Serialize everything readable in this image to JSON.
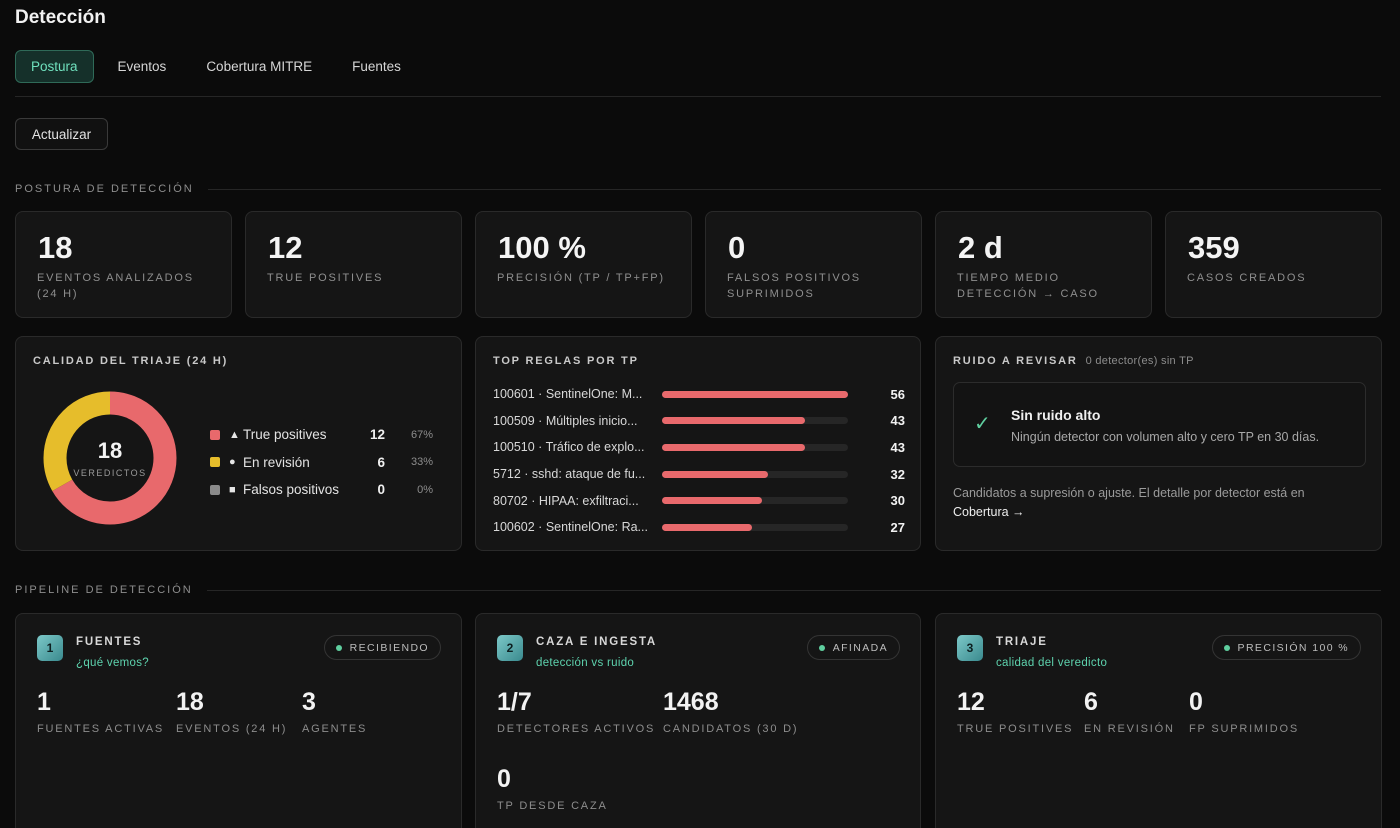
{
  "page": {
    "title": "Detección"
  },
  "tabs": [
    {
      "label": "Postura",
      "active": true
    },
    {
      "label": "Eventos",
      "active": false
    },
    {
      "label": "Cobertura MITRE",
      "active": false
    },
    {
      "label": "Fuentes",
      "active": false
    }
  ],
  "toolbar": {
    "refresh_label": "Actualizar"
  },
  "posture": {
    "section_title": "POSTURA DE DETECCIÓN",
    "kpis": [
      {
        "value": "18",
        "label": "EVENTOS ANALIZADOS (24 H)"
      },
      {
        "value": "12",
        "label": "TRUE POSITIVES"
      },
      {
        "value": "100 %",
        "label": "PRECISIÓN (TP / TP+FP)"
      },
      {
        "value": "0",
        "label": "FALSOS POSITIVOS SUPRIMIDOS"
      },
      {
        "value": "2 d",
        "label": "TIEMPO MEDIO DETECCIÓN → CASO"
      },
      {
        "value": "359",
        "label": "CASOS CREADOS"
      }
    ]
  },
  "triage": {
    "title": "CALIDAD DEL TRIAJE (24 H)",
    "total": "18",
    "total_caption": "VEREDICTOS",
    "items": [
      {
        "glyph": "▲",
        "name": "True positives",
        "count": "12",
        "pct": "67%",
        "value": 12,
        "color": "#e8696c"
      },
      {
        "glyph": "●",
        "name": "En revisión",
        "count": "6",
        "pct": "33%",
        "value": 6,
        "color": "#e6bd2b"
      },
      {
        "glyph": "■",
        "name": "Falsos positivos",
        "count": "0",
        "pct": "0%",
        "value": 0,
        "color": "#8a8a8a"
      }
    ]
  },
  "top_rules": {
    "title": "TOP REGLAS POR TP",
    "max": 56,
    "rules": [
      {
        "name": "100601 · SentinelOne: M...",
        "count": "56",
        "value": 56
      },
      {
        "name": "100509 · Múltiples inicio...",
        "count": "43",
        "value": 43
      },
      {
        "name": "100510 · Tráfico de explo...",
        "count": "43",
        "value": 43
      },
      {
        "name": "5712 · sshd: ataque de fu...",
        "count": "32",
        "value": 32
      },
      {
        "name": "80702 · HIPAA: exfiltraci...",
        "count": "30",
        "value": 30
      },
      {
        "name": "100602 · SentinelOne: Ra...",
        "count": "27",
        "value": 27
      }
    ]
  },
  "noise": {
    "title": "RUIDO A REVISAR",
    "subtitle": "0 detector(es) sin TP",
    "box_title": "Sin ruido alto",
    "box_text": "Ningún detector con volumen alto y cero TP en 30 días.",
    "footer": "Candidatos a supresión o ajuste. El detalle por detector está en",
    "link": "Cobertura →"
  },
  "pipeline": {
    "section_title": "PIPELINE DE DETECCIÓN",
    "stages": [
      {
        "num": "1",
        "title": "FUENTES",
        "subtitle": "¿qué vemos?",
        "status": "RECIBIENDO",
        "metrics": [
          {
            "value": "1",
            "label": "FUENTES ACTIVAS"
          },
          {
            "value": "18",
            "label": "EVENTOS (24 H)"
          },
          {
            "value": "3",
            "label": "AGENTES"
          }
        ]
      },
      {
        "num": "2",
        "title": "CAZA E INGESTA",
        "subtitle": "detección vs ruido",
        "status": "AFINADA",
        "metrics": [
          {
            "value": "1/7",
            "label": "DETECTORES ACTIVOS"
          },
          {
            "value": "1468",
            "label": "CANDIDATOS (30 D)"
          },
          {
            "value": "0",
            "label": "TP DESDE CAZA"
          }
        ]
      },
      {
        "num": "3",
        "title": "TRIAJE",
        "subtitle": "calidad del veredicto",
        "status": "PRECISIÓN 100 %",
        "metrics": [
          {
            "value": "12",
            "label": "TRUE POSITIVES"
          },
          {
            "value": "6",
            "label": "EN REVISIÓN"
          },
          {
            "value": "0",
            "label": "FP SUPRIMIDOS"
          }
        ]
      }
    ]
  }
}
